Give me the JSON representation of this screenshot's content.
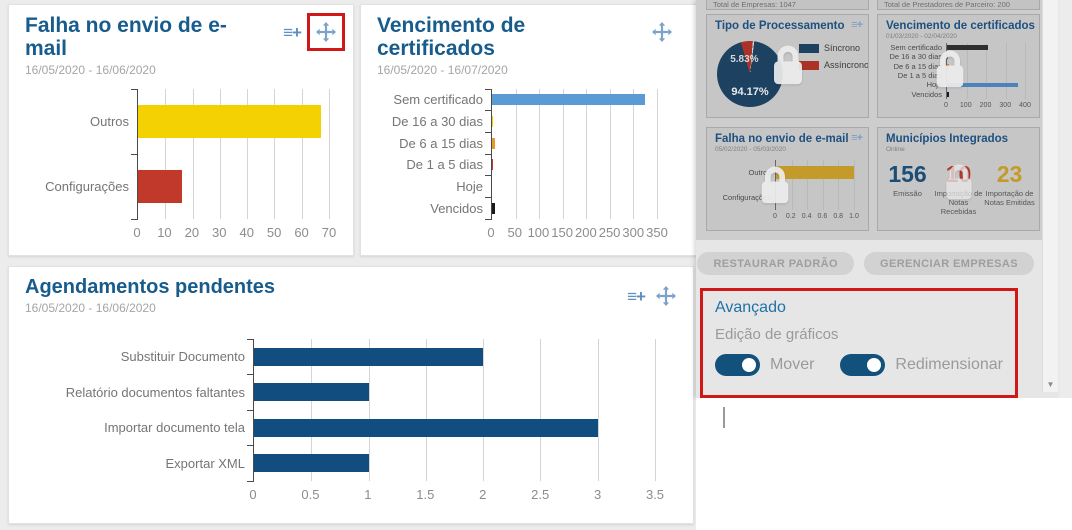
{
  "colors": {
    "title_blue": "#175c8d",
    "annotation_red": "#d01818",
    "toggle_navy": "#11517c",
    "bar_yellow": "#f4d103",
    "bar_red": "#c0392b",
    "bar_blue": "#5b9bd5",
    "bar_navy": "#114e7f"
  },
  "icons": {
    "add_chart": "≡+",
    "scroll_down": "▼"
  },
  "sidebar": {
    "partial_stats": [
      "Total de Empresas: 1047",
      "Total de Prestadores de Parceiro: 200"
    ],
    "cards": {
      "municipios": {
        "title": "Municípios Integrados",
        "subtitle": "Online",
        "stats": [
          {
            "value": "156",
            "label": "Emissão",
            "color": "#1c4d74"
          },
          {
            "value": "10",
            "label": "Importação de Notas Recebidas",
            "color": "#b03a2e"
          },
          {
            "value": "23",
            "label": "Importação de Notas Emitidas",
            "color": "#c49b2a"
          }
        ]
      }
    },
    "buttons": {
      "restore": "RESTAURAR PADRÃO",
      "manage": "GERENCIAR EMPRESAS"
    },
    "advanced": {
      "title": "Avançado",
      "subtitle": "Edição de gráficos",
      "toggle_move": "Mover",
      "toggle_resize": "Redimensionar",
      "toggle_move_on": true,
      "toggle_resize_on": true
    }
  },
  "chart_data": [
    {
      "id": "email-failure",
      "type": "bar",
      "orientation": "horizontal",
      "title": "Falha no envio de e-mail",
      "date_range": "16/05/2020 - 16/06/2020",
      "categories": [
        "Outros",
        "Configurações"
      ],
      "values": [
        67,
        16
      ],
      "colors": [
        "#f4d103",
        "#c0392b"
      ],
      "xlim": [
        0,
        70
      ],
      "xticks": [
        "0",
        "10",
        "20",
        "30",
        "40",
        "50",
        "60",
        "70"
      ],
      "grid": true,
      "legend": false
    },
    {
      "id": "cert-expiry",
      "type": "bar",
      "orientation": "horizontal",
      "title": "Vencimento de certificados",
      "date_range": "16/05/2020 - 16/07/2020",
      "categories": [
        "Sem certificado",
        "De 16 a 30 dias",
        "De 6 a 15 dias",
        "De 1 a 5 dias",
        "Hoje",
        "Vencidos"
      ],
      "values": [
        325,
        2,
        6,
        1,
        0,
        6
      ],
      "colors": [
        "#5b9bd5",
        "#f4d103",
        "#e59c2c",
        "#c0392b",
        "#999999",
        "#1a1a1a"
      ],
      "xlim": [
        0,
        350
      ],
      "xticks": [
        "0",
        "50",
        "100",
        "150",
        "200",
        "250",
        "300",
        "350"
      ],
      "grid": true,
      "legend": false
    },
    {
      "id": "pending-schedules",
      "type": "bar",
      "orientation": "horizontal",
      "title": "Agendamentos pendentes",
      "date_range": "16/05/2020 - 16/06/2020",
      "categories": [
        "Substituir Documento",
        "Relatório documentos faltantes",
        "Importar documento tela",
        "Exportar XML"
      ],
      "values": [
        2,
        1,
        3,
        1
      ],
      "colors": [
        "#114e7f",
        "#114e7f",
        "#114e7f",
        "#114e7f"
      ],
      "xlim": [
        0,
        3.5
      ],
      "xticks": [
        "0",
        "0.5",
        "1",
        "1.5",
        "2",
        "2.5",
        "3",
        "3.5"
      ],
      "grid": true,
      "legend": false
    },
    {
      "id": "processing-type",
      "type": "pie",
      "title": "Tipo de Processamento",
      "legend": [
        "Síncrono",
        "Assíncrono"
      ],
      "values": [
        94.17,
        5.83
      ],
      "pct_labels": [
        "94.17%",
        "5.83%"
      ],
      "colors": [
        "#1d4161",
        "#ab3226"
      ],
      "start_deg": -16,
      "locked": true
    },
    {
      "id": "cert-expiry-mini",
      "type": "bar",
      "orientation": "horizontal",
      "title": "Vencimento de certificados",
      "date_range": "01/03/2020 - 02/04/2020",
      "categories": [
        "Sem certificado",
        "De 16 a 30 dias",
        "De 6 a 15 dias",
        "De 1 a 5 dias",
        "Hoje",
        "Vencidos"
      ],
      "values": [
        210,
        6,
        12,
        0,
        365,
        10
      ],
      "colors": [
        "#2f2f2f",
        "#b03a2e",
        "#d68910",
        "#c0392b",
        "#4b83bd",
        "#1a1a1a"
      ],
      "xlim": [
        0,
        400
      ],
      "xticks": [
        "0",
        "100",
        "200",
        "300",
        "400"
      ],
      "grid": true,
      "legend": false,
      "locked": true
    },
    {
      "id": "email-failure-mini",
      "type": "bar",
      "orientation": "horizontal",
      "title": "Falha no envio de e-mail",
      "date_range": "05/02/2020 - 05/03/2020",
      "categories": [
        "Outros",
        "Configurações"
      ],
      "values": [
        1,
        0
      ],
      "colors": [
        "#c49b2a",
        "#c49b2a"
      ],
      "xlim": [
        0,
        1
      ],
      "xticks": [
        "0",
        "0.2",
        "0.4",
        "0.6",
        "0.8",
        "1.0"
      ],
      "grid": true,
      "legend": false,
      "locked": true
    }
  ]
}
